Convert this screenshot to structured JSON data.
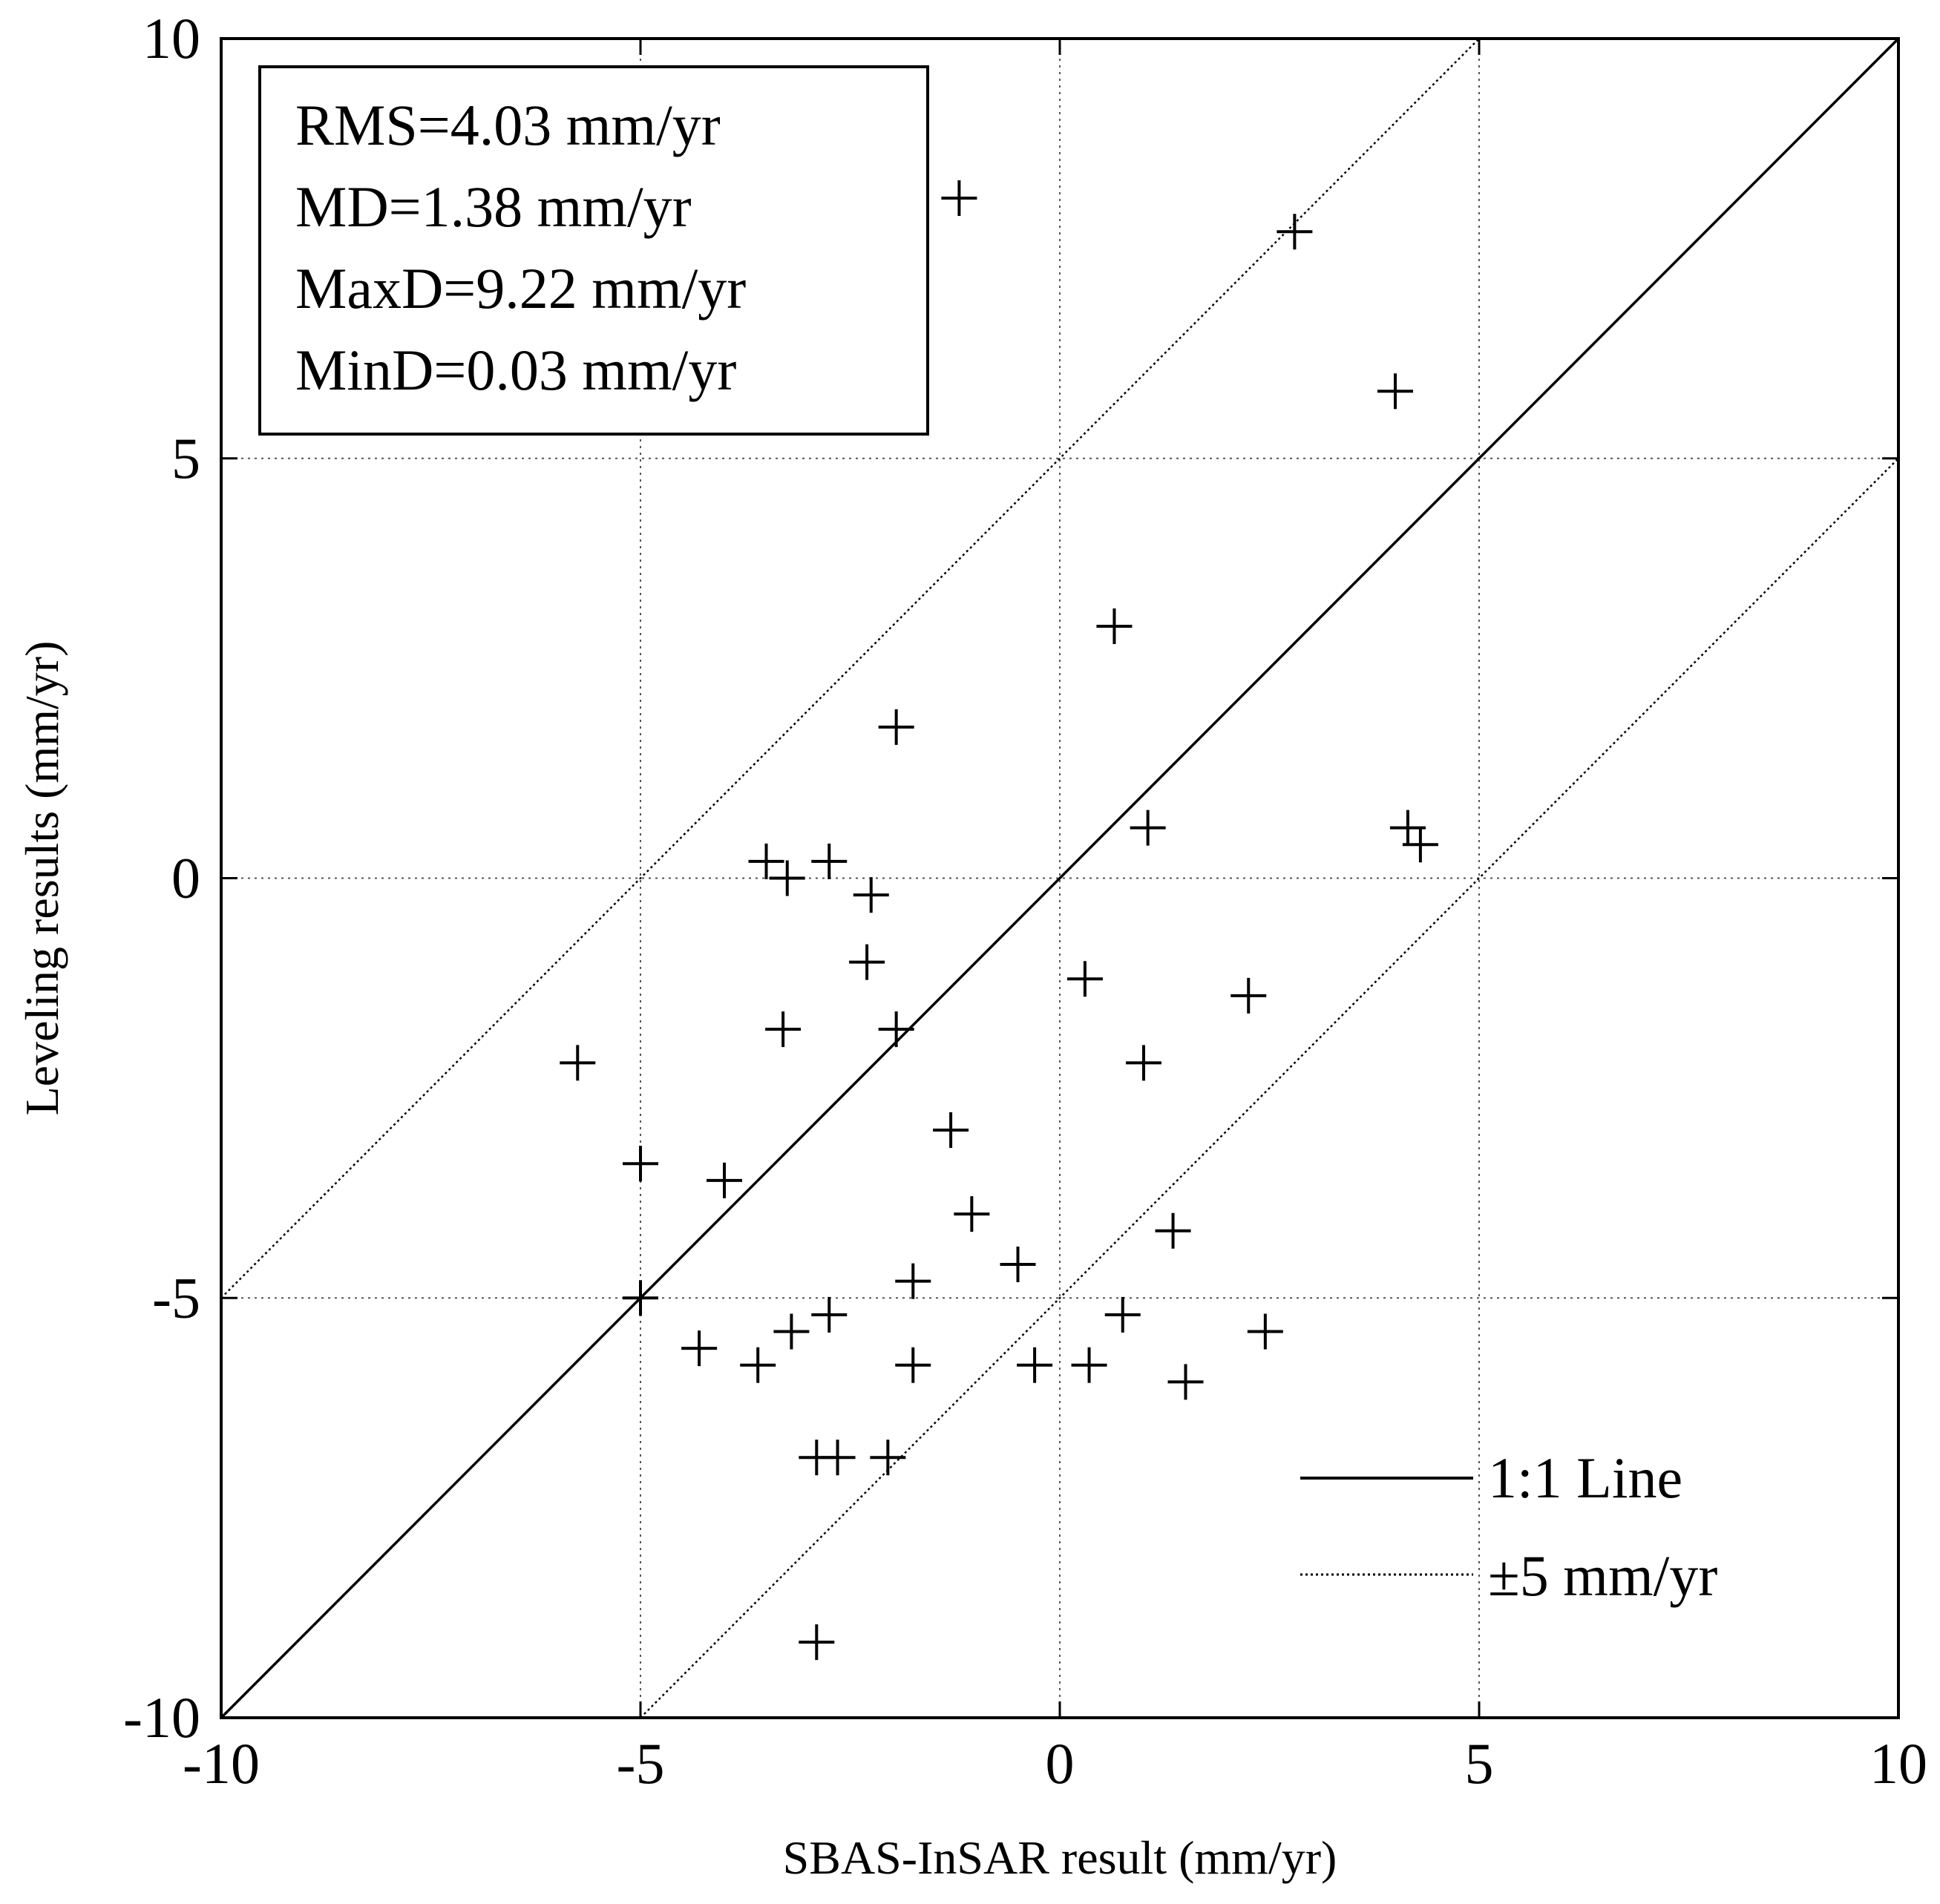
{
  "chart_data": {
    "type": "scatter",
    "xlabel": "SBAS-InSAR result (mm/yr)",
    "ylabel": "Leveling results (mm/yr)",
    "xlim": [
      -10,
      10
    ],
    "ylim": [
      -10,
      10
    ],
    "grid": true,
    "grid_ticks": [
      -5,
      0,
      5
    ],
    "xticks": [
      -10,
      -5,
      0,
      5,
      10
    ],
    "yticks": [
      -10,
      -5,
      0,
      5,
      10
    ],
    "xtick_labels": [
      "-10",
      "-5",
      "0",
      "5",
      "10"
    ],
    "ytick_labels": [
      "-10",
      "-5",
      "0",
      "5",
      "10"
    ],
    "stats": [
      "RMS=4.03 mm/yr",
      "MD=1.38 mm/yr",
      "MaxD=9.22 mm/yr",
      "MinD=0.03 mm/yr"
    ],
    "legend_position": "bottom-right",
    "lines": [
      {
        "name": "1:1 Line",
        "style": "solid",
        "offset": 0
      },
      {
        "name": "±5 mm/yr",
        "style": "dotted",
        "offset": 5
      },
      {
        "name": "±5 mm/yr",
        "style": "dotted",
        "offset": -5
      }
    ],
    "legend": [
      {
        "label": "1:1 Line",
        "style": "solid"
      },
      {
        "label": "±5 mm/yr",
        "style": "dotted"
      }
    ],
    "series": [
      {
        "name": "points",
        "marker": "+",
        "x": [
          -1.2,
          2.8,
          4.0,
          0.65,
          -1.95,
          1.05,
          4.15,
          4.3,
          -3.5,
          -3.25,
          -2.75,
          -2.25,
          -2.3,
          -3.3,
          -1.95,
          0.3,
          2.25,
          1.0,
          -5.75,
          -1.3,
          -5.0,
          -4.0,
          -1.05,
          1.35,
          -0.5,
          -1.75,
          -5.0,
          -2.75,
          -3.2,
          -4.3,
          -3.6,
          -1.75,
          -0.3,
          0.35,
          0.75,
          1.5,
          2.45,
          -2.9,
          -2.65,
          -2.05,
          -2.9
        ],
        "y": [
          8.1,
          7.7,
          5.8,
          3.0,
          1.8,
          0.6,
          0.6,
          0.4,
          0.2,
          0.0,
          0.2,
          -0.2,
          -1.0,
          -1.8,
          -1.8,
          -1.2,
          -1.4,
          -2.2,
          -2.2,
          -3.0,
          -3.4,
          -3.6,
          -4.0,
          -4.2,
          -4.6,
          -4.8,
          -5.0,
          -5.2,
          -5.4,
          -5.6,
          -5.8,
          -5.8,
          -5.8,
          -5.8,
          -5.2,
          -6.0,
          -5.4,
          -6.9,
          -6.9,
          -6.9,
          -9.1
        ]
      }
    ]
  }
}
